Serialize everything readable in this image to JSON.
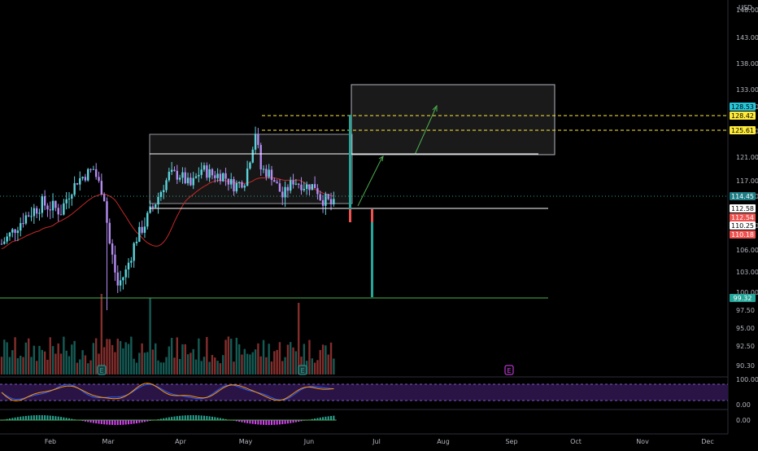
{
  "header": {
    "currency": "USD"
  },
  "colors": {
    "up": "#26a69a",
    "down": "#ef5350",
    "up_candle": "#5dd4dc",
    "down_candle": "#b48cf2",
    "ma": "#c62828",
    "green_line": "#4caf50",
    "yellow_line": "#ffeb3b",
    "rsi_band": "#2a1446",
    "rsi_border": "#7e57c2"
  },
  "chart_data": {
    "type": "candlestick",
    "price_axis": {
      "ticks": [
        "148.00",
        "143.00",
        "138.00",
        "133.00",
        "129.00",
        "125.00",
        "121.00",
        "117.00",
        "114.00",
        "110.00",
        "106.00",
        "103.00",
        "100.00",
        "97.50",
        "95.00",
        "92.50",
        "90.30"
      ],
      "range": [
        89.5,
        150
      ]
    },
    "time_axis": {
      "labels": [
        "Feb",
        "Mar",
        "Apr",
        "May",
        "Jun",
        "Jul",
        "Aug",
        "Sep",
        "Oct",
        "Nov",
        "Dec"
      ]
    },
    "price_tags": [
      {
        "value": 128.53,
        "label": "128.53",
        "bg": "#26c6da",
        "fg": "#000000"
      },
      {
        "value": 128.42,
        "label": "128.42",
        "bg": "#ffeb3b",
        "fg": "#000000"
      },
      {
        "value": 125.61,
        "label": "125.61",
        "bg": "#ffeb3b",
        "fg": "#000000"
      },
      {
        "value": 114.45,
        "label": "114.45",
        "bg": "#1e7e85",
        "fg": "#ffffff"
      },
      {
        "value": 112.58,
        "label": "112.58",
        "bg": "#ffffff",
        "fg": "#000000"
      },
      {
        "value": 112.54,
        "label": "112.54",
        "bg": "#ef5350",
        "fg": "#ffffff"
      },
      {
        "value": 110.25,
        "label": "110.25",
        "bg": "#ffffff",
        "fg": "#000000"
      },
      {
        "value": 110.18,
        "label": "110.18",
        "bg": "#ef5350",
        "fg": "#ffffff"
      },
      {
        "value": 99.32,
        "label": "99.32",
        "bg": "#26a69a",
        "fg": "#ffffff"
      }
    ],
    "rsi_axis": [
      "100.00",
      "0.00"
    ],
    "macd_axis": [
      "0.00"
    ],
    "events": [
      {
        "label": "E",
        "date": "Feb 18"
      },
      {
        "label": "E",
        "date": "May 27"
      },
      {
        "label": "E",
        "date": "Aug 26"
      }
    ],
    "levels": [
      {
        "name": "flag-top",
        "price": 121.4,
        "color": "#ffffff"
      },
      {
        "name": "flag-bottom",
        "price": 113.0,
        "color": "#ffffff"
      },
      {
        "name": "target-yellow-1",
        "price": 128.42,
        "color": "#ffeb3b"
      },
      {
        "name": "target-yellow-2",
        "price": 125.61,
        "color": "#ffeb3b"
      },
      {
        "name": "support-green",
        "price": 99.32,
        "color": "#4caf50"
      },
      {
        "name": "current",
        "price": 114.45,
        "color": "#26a69a"
      }
    ]
  }
}
